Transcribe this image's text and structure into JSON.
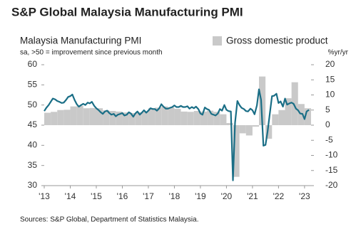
{
  "header": "S&P Global Malaysia Manufacturing PMI",
  "source": "Sources: S&P Global, Department of Statistics Malaysia.",
  "chart_data": {
    "type": "combo",
    "title": "Malaysia Manufacturing PMI",
    "subtitle": "sa, >50 = improvement since previous month",
    "y2_label": "%yr/yr",
    "xlim": [
      2013,
      2023.25
    ],
    "xticks": [
      {
        "value": 2013,
        "label": "'13"
      },
      {
        "value": 2014,
        "label": "'14"
      },
      {
        "value": 2015,
        "label": "'15"
      },
      {
        "value": 2016,
        "label": "'16"
      },
      {
        "value": 2017,
        "label": "'17"
      },
      {
        "value": 2018,
        "label": "'18"
      },
      {
        "value": 2019,
        "label": "'19"
      },
      {
        "value": 2020,
        "label": "'20"
      },
      {
        "value": 2021,
        "label": "'21"
      },
      {
        "value": 2022,
        "label": "'22"
      },
      {
        "value": 2023,
        "label": "'23"
      }
    ],
    "ylim": [
      30,
      60
    ],
    "yticks": [
      30,
      35,
      40,
      45,
      50,
      55,
      60
    ],
    "y2lim": [
      -20,
      20
    ],
    "y2ticks": [
      -20,
      -15,
      -10,
      -5,
      0,
      5,
      10,
      15,
      20
    ],
    "legend": "top-right",
    "series": [
      {
        "name": "Gross domestic product",
        "type": "bar",
        "axis": "y2",
        "color": "#c9c9c9",
        "x": [
          2013,
          2013.25,
          2013.5,
          2013.75,
          2014,
          2014.25,
          2014.5,
          2014.75,
          2015,
          2015.25,
          2015.5,
          2015.75,
          2016,
          2016.25,
          2016.5,
          2016.75,
          2017,
          2017.25,
          2017.5,
          2017.75,
          2018,
          2018.25,
          2018.5,
          2018.75,
          2019,
          2019.25,
          2019.5,
          2019.75,
          2020,
          2020.25,
          2020.5,
          2020.75,
          2021,
          2021.25,
          2021.5,
          2021.75,
          2022,
          2022.25,
          2022.5,
          2022.75,
          2023
        ],
        "values": [
          4.1,
          4.4,
          5.0,
          5.1,
          6.2,
          6.4,
          5.6,
          5.7,
          5.6,
          4.9,
          4.7,
          4.5,
          4.2,
          4.0,
          4.3,
          4.5,
          5.6,
          5.8,
          6.2,
          5.9,
          5.4,
          4.5,
          4.4,
          4.7,
          4.5,
          4.8,
          4.4,
          3.6,
          0.7,
          -17.1,
          -2.7,
          -3.4,
          -0.5,
          16.1,
          -4.5,
          3.6,
          5.0,
          8.9,
          14.2,
          7.0,
          5.6
        ]
      },
      {
        "type": "line",
        "axis": "y",
        "color": "#1a6e86",
        "x": [
          2013,
          2013.08,
          2013.17,
          2013.25,
          2013.33,
          2013.42,
          2013.5,
          2013.58,
          2013.67,
          2013.75,
          2013.83,
          2013.92,
          2014,
          2014.08,
          2014.17,
          2014.25,
          2014.33,
          2014.42,
          2014.5,
          2014.58,
          2014.67,
          2014.75,
          2014.83,
          2014.92,
          2015,
          2015.08,
          2015.17,
          2015.25,
          2015.33,
          2015.42,
          2015.5,
          2015.58,
          2015.67,
          2015.75,
          2015.83,
          2015.92,
          2016,
          2016.08,
          2016.17,
          2016.25,
          2016.33,
          2016.42,
          2016.5,
          2016.58,
          2016.67,
          2016.75,
          2016.83,
          2016.92,
          2017,
          2017.08,
          2017.17,
          2017.25,
          2017.33,
          2017.42,
          2017.5,
          2017.58,
          2017.67,
          2017.75,
          2017.83,
          2017.92,
          2018,
          2018.08,
          2018.17,
          2018.25,
          2018.33,
          2018.42,
          2018.5,
          2018.58,
          2018.67,
          2018.75,
          2018.83,
          2018.92,
          2019,
          2019.08,
          2019.17,
          2019.25,
          2019.33,
          2019.42,
          2019.5,
          2019.58,
          2019.67,
          2019.75,
          2019.83,
          2019.92,
          2020,
          2020.08,
          2020.17,
          2020.25,
          2020.33,
          2020.42,
          2020.5,
          2020.58,
          2020.67,
          2020.75,
          2020.83,
          2020.92,
          2021,
          2021.08,
          2021.17,
          2021.25,
          2021.33,
          2021.42,
          2021.5,
          2021.58,
          2021.67,
          2021.75,
          2021.83,
          2021.92,
          2022,
          2022.08,
          2022.17,
          2022.25,
          2022.33,
          2022.42,
          2022.5,
          2022.58,
          2022.67,
          2022.75,
          2022.83,
          2022.92,
          2023,
          2023.08,
          2023.17
        ],
        "values": [
          48.5,
          49.3,
          50.0,
          50.8,
          51.6,
          51.4,
          51.0,
          50.8,
          50.5,
          50.6,
          51.2,
          52.0,
          52.2,
          52.6,
          51.2,
          50.2,
          49.6,
          50.0,
          50.3,
          50.0,
          50.6,
          50.4,
          50.8,
          49.8,
          49.2,
          48.8,
          48.2,
          47.8,
          48.4,
          48.6,
          48.0,
          47.6,
          47.8,
          47.2,
          47.6,
          47.8,
          48.0,
          47.4,
          47.6,
          48.2,
          47.9,
          47.1,
          47.9,
          48.4,
          47.6,
          48.1,
          48.7,
          48.1,
          48.6,
          49.2,
          49.0,
          49.0,
          48.6,
          49.2,
          50.2,
          49.6,
          49.1,
          49.1,
          49.3,
          49.5,
          49.9,
          49.5,
          49.5,
          49.8,
          49.5,
          49.5,
          49.7,
          49.1,
          49.5,
          49.2,
          49.6,
          49.0,
          47.9,
          47.6,
          49.4,
          49.0,
          48.8,
          47.8,
          47.6,
          47.4,
          47.9,
          49.0,
          48.6,
          50.0,
          48.8,
          48.5,
          48.4,
          31.3,
          45.6,
          51.0,
          50.0,
          49.3,
          49.0,
          48.5,
          48.4,
          49.1,
          48.7,
          47.7,
          49.9,
          53.9,
          51.3,
          39.9,
          40.1,
          43.4,
          48.1,
          52.2,
          52.3,
          52.8,
          50.5,
          50.9,
          49.6,
          51.6,
          50.1,
          50.4,
          50.6,
          50.3,
          49.1,
          48.7,
          47.9,
          47.8,
          46.5,
          48.4,
          48.8
        ]
      }
    ]
  }
}
